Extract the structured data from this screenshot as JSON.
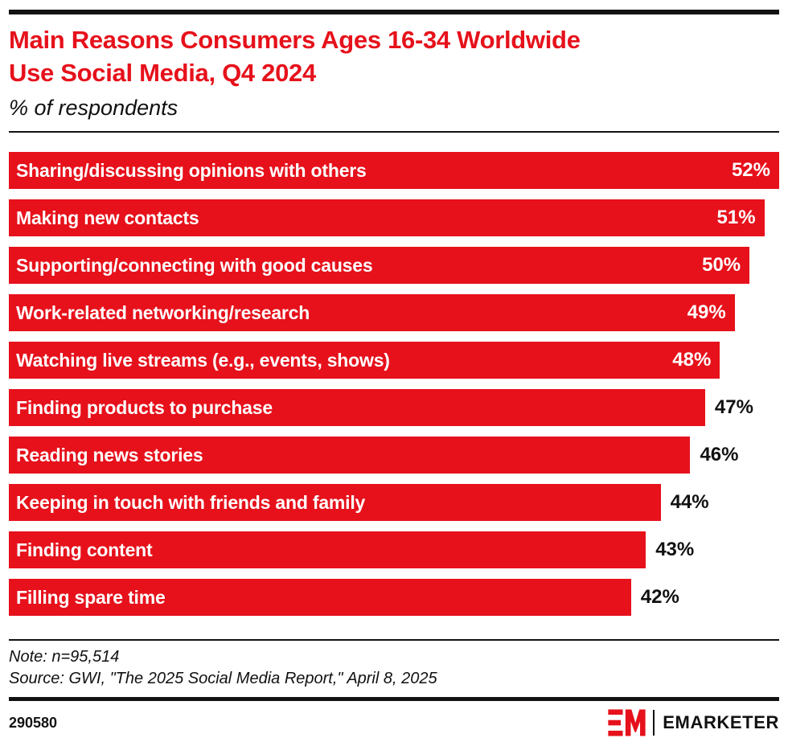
{
  "header": {
    "title_line1": "Main Reasons Consumers Ages 16-34 Worldwide",
    "title_line2": "Use Social Media, Q4 2024",
    "subtitle": "% of respondents"
  },
  "chart_data": {
    "type": "bar",
    "orientation": "horizontal",
    "title": "Main Reasons Consumers Ages 16-34 Worldwide Use Social Media, Q4 2024",
    "subtitle": "% of respondents",
    "unit": "% of respondents",
    "xlim": [
      0,
      52
    ],
    "grid": false,
    "legend": false,
    "bar_color": "#e6111b",
    "value_label_color_inside": "#ffffff",
    "value_label_color_outside": "#111111",
    "categories": [
      "Sharing/discussing opinions with others",
      "Making new contacts",
      "Supporting/connecting with good causes",
      "Work-related networking/research",
      "Watching live streams (e.g., events, shows)",
      "Finding products to purchase",
      "Reading news stories",
      "Keeping in touch with friends and family",
      "Finding content",
      "Filling spare time"
    ],
    "values": [
      52,
      51,
      50,
      49,
      48,
      47,
      46,
      44,
      43,
      42
    ],
    "value_labels": [
      "52%",
      "51%",
      "50%",
      "49%",
      "48%",
      "47%",
      "46%",
      "44%",
      "43%",
      "42%"
    ],
    "value_label_position": [
      "inside",
      "inside",
      "inside",
      "inside",
      "inside",
      "outside",
      "outside",
      "outside",
      "outside",
      "outside"
    ]
  },
  "footer": {
    "note": "Note: n=95,514",
    "source": "Source: GWI, \"The 2025 Social Media Report,\" April 8, 2025",
    "chart_id": "290580",
    "brand_name": "EMARKETER"
  },
  "colors": {
    "accent_red": "#e6111b",
    "text_black": "#111111"
  }
}
